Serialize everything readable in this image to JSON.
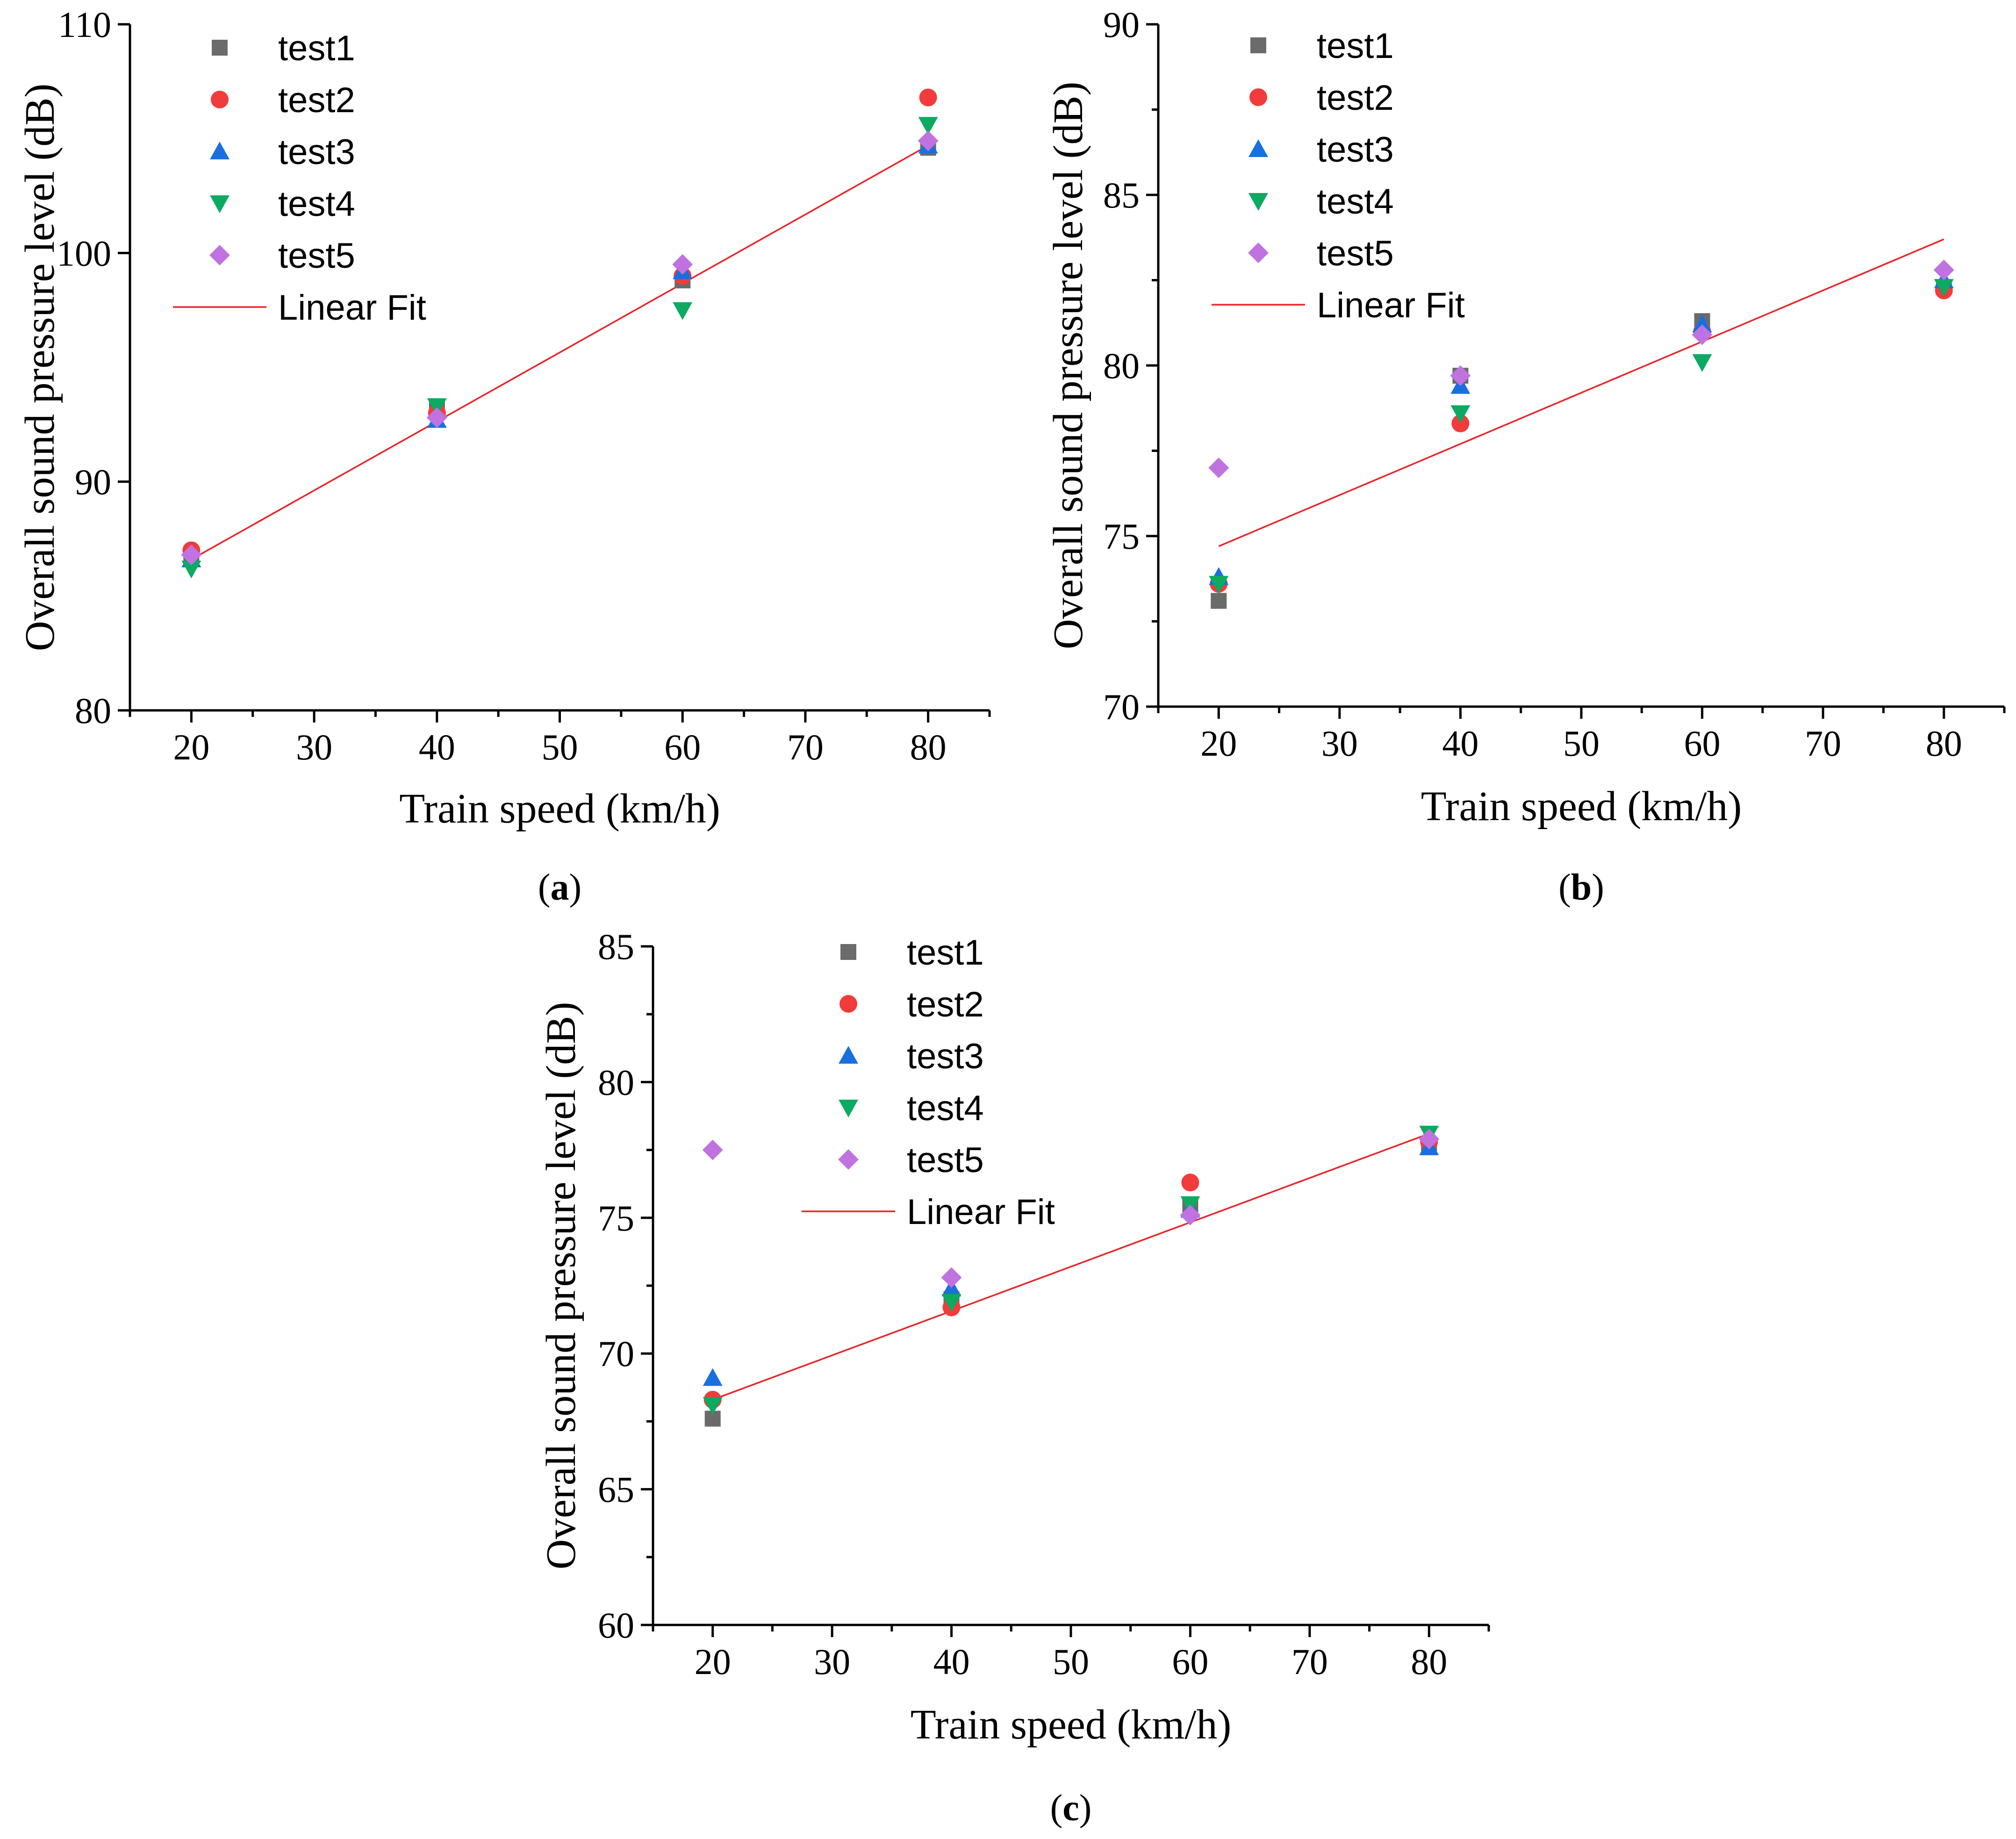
{
  "colors": {
    "test1": "#6b6b6b",
    "test2": "#f23b3b",
    "test3": "#1a6fe0",
    "test4": "#0daa62",
    "test5": "#bf72e0",
    "fit": "#e8262a"
  },
  "legend_labels": [
    "test1",
    "test2",
    "test3",
    "test4",
    "test5",
    "Linear Fit"
  ],
  "chart_data": [
    {
      "panel": "a",
      "caption_letter": "a",
      "type": "scatter",
      "xlabel": "Train speed (km/h)",
      "ylabel": "Overall sound pressure level (dB)",
      "xlim": [
        15,
        85
      ],
      "ylim": [
        80,
        110
      ],
      "xticks": [
        20,
        30,
        40,
        50,
        60,
        70,
        80
      ],
      "yticks": [
        80,
        90,
        100,
        110
      ],
      "x": [
        20,
        40,
        60,
        80
      ],
      "series": [
        {
          "name": "test1",
          "marker": "square",
          "values": [
            86.6,
            93.2,
            98.8,
            104.6
          ]
        },
        {
          "name": "test2",
          "marker": "circle",
          "values": [
            87.0,
            93.0,
            99.0,
            106.8
          ]
        },
        {
          "name": "test3",
          "marker": "triangle-up",
          "values": [
            86.6,
            92.7,
            99.2,
            104.7
          ]
        },
        {
          "name": "test4",
          "marker": "triangle-down",
          "values": [
            86.2,
            93.3,
            97.5,
            105.6
          ]
        },
        {
          "name": "test5",
          "marker": "diamond",
          "values": [
            86.8,
            92.8,
            99.5,
            104.9
          ]
        }
      ],
      "fit": {
        "name": "Linear Fit",
        "x": [
          20,
          80
        ],
        "y": [
          86.6,
          104.7
        ]
      },
      "legend_position": "top-left"
    },
    {
      "panel": "b",
      "caption_letter": "b",
      "type": "scatter",
      "xlabel": "Train speed (km/h)",
      "ylabel": "Overall sound pressure level (dB)",
      "xlim": [
        15,
        85
      ],
      "ylim": [
        70,
        90
      ],
      "xticks": [
        20,
        30,
        40,
        50,
        60,
        70,
        80
      ],
      "yticks": [
        70,
        75,
        80,
        85,
        90
      ],
      "x": [
        20,
        40,
        60,
        80
      ],
      "series": [
        {
          "name": "test1",
          "marker": "square",
          "values": [
            73.1,
            79.7,
            81.3,
            82.3
          ]
        },
        {
          "name": "test2",
          "marker": "circle",
          "values": [
            73.6,
            78.3,
            81.0,
            82.2
          ]
        },
        {
          "name": "test3",
          "marker": "triangle-up",
          "values": [
            73.8,
            79.4,
            81.2,
            82.5
          ]
        },
        {
          "name": "test4",
          "marker": "triangle-down",
          "values": [
            73.6,
            78.6,
            80.1,
            82.3
          ]
        },
        {
          "name": "test5",
          "marker": "diamond",
          "values": [
            77.0,
            79.7,
            80.9,
            82.8
          ]
        }
      ],
      "fit": {
        "name": "Linear Fit",
        "x": [
          20,
          80
        ],
        "y": [
          74.7,
          83.7
        ]
      },
      "legend_position": "top-left"
    },
    {
      "panel": "c",
      "caption_letter": "c",
      "type": "scatter",
      "xlabel": "Train speed (km/h)",
      "ylabel": "Overall sound pressure level (dB)",
      "xlim": [
        15,
        85
      ],
      "ylim": [
        60,
        85
      ],
      "xticks": [
        20,
        30,
        40,
        50,
        60,
        70,
        80
      ],
      "yticks": [
        60,
        65,
        70,
        75,
        80,
        85
      ],
      "x": [
        20,
        40,
        60,
        80
      ],
      "series": [
        {
          "name": "test1",
          "marker": "square",
          "values": [
            67.6,
            72.0,
            75.5,
            77.6
          ]
        },
        {
          "name": "test2",
          "marker": "circle",
          "values": [
            68.3,
            71.7,
            76.3,
            77.8
          ]
        },
        {
          "name": "test3",
          "marker": "triangle-up",
          "values": [
            69.1,
            72.4,
            75.3,
            77.6
          ]
        },
        {
          "name": "test4",
          "marker": "triangle-down",
          "values": [
            68.1,
            71.9,
            75.5,
            78.1
          ]
        },
        {
          "name": "test5",
          "marker": "diamond",
          "values": [
            77.5,
            72.8,
            75.1,
            77.9
          ]
        }
      ],
      "fit": {
        "name": "Linear Fit",
        "x": [
          20,
          80
        ],
        "y": [
          68.3,
          78.1
        ]
      },
      "legend_position": "top-left"
    }
  ]
}
